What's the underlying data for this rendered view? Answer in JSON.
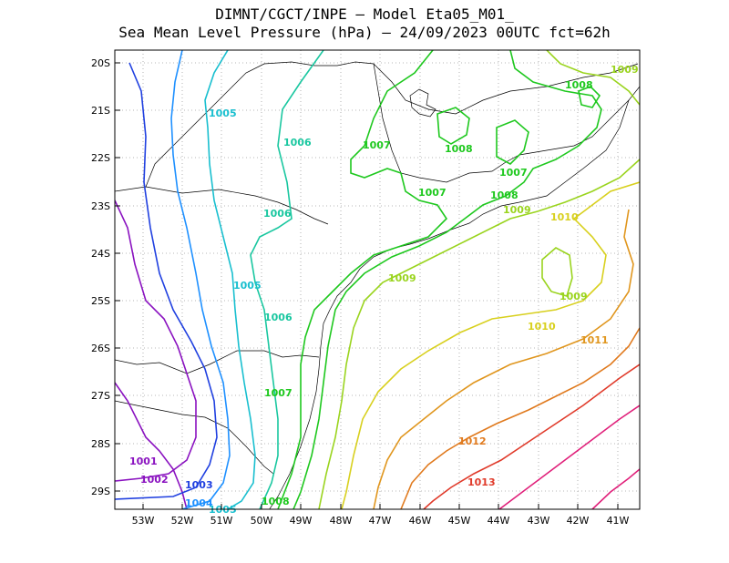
{
  "title_line1": "DIMNT/CGCT/INPE —  Model Eta05_M01_",
  "title_line2": "Sea Mean Level Pressure (hPa) — 24/09/2023 00UTC fct=62h",
  "lat_ticks": [
    "20S",
    "21S",
    "22S",
    "23S",
    "24S",
    "25S",
    "26S",
    "27S",
    "28S",
    "29S"
  ],
  "lon_ticks": [
    "53W",
    "52W",
    "51W",
    "50W",
    "49W",
    "48W",
    "47W",
    "46W",
    "45W",
    "44W",
    "43W",
    "42W",
    "41W"
  ],
  "contour_labels": [
    {
      "text": "1001",
      "color": "#8a12c0"
    },
    {
      "text": "1002",
      "color": "#8a12c0"
    },
    {
      "text": "1003",
      "color": "#2040e0"
    },
    {
      "text": "1004",
      "color": "#1e90ff"
    },
    {
      "text": "1005",
      "color": "#19bfcf"
    },
    {
      "text": "1005",
      "color": "#19bfcf"
    },
    {
      "text": "1005",
      "color": "#19bfcf"
    },
    {
      "text": "1006",
      "color": "#1ac7a0"
    },
    {
      "text": "1006",
      "color": "#1ac7a0"
    },
    {
      "text": "1006",
      "color": "#1ac7a0"
    },
    {
      "text": "1007",
      "color": "#1ec81e"
    },
    {
      "text": "1007",
      "color": "#1ec81e"
    },
    {
      "text": "1007",
      "color": "#1ec81e"
    },
    {
      "text": "1007",
      "color": "#1ec81e"
    },
    {
      "text": "1008",
      "color": "#1ec81e"
    },
    {
      "text": "1008",
      "color": "#1ec81e"
    },
    {
      "text": "1008",
      "color": "#1ec81e"
    },
    {
      "text": "1008",
      "color": "#1ec81e"
    },
    {
      "text": "1009",
      "color": "#9ad41e"
    },
    {
      "text": "1009",
      "color": "#9ad41e"
    },
    {
      "text": "1009",
      "color": "#9ad41e"
    },
    {
      "text": "1009",
      "color": "#9ad41e"
    },
    {
      "text": "1010",
      "color": "#d8d01e"
    },
    {
      "text": "1010",
      "color": "#d8d01e"
    },
    {
      "text": "1011",
      "color": "#e0961e"
    },
    {
      "text": "1012",
      "color": "#e07a1e"
    },
    {
      "text": "1013",
      "color": "#e03a2a"
    }
  ],
  "colors": {
    "c1001": "#8a12c0",
    "c1002": "#8a12c0",
    "c1003": "#2040e0",
    "c1004": "#1e90ff",
    "c1005": "#19bfcf",
    "c1006": "#1ac7a0",
    "c1007": "#1ec81e",
    "c1008": "#1ec81e",
    "c1009": "#9ad41e",
    "c1010": "#d8d01e",
    "c1011": "#e0961e",
    "c1012": "#e07a1e",
    "c1013": "#e03a2a",
    "c1014": "#e0207a"
  }
}
